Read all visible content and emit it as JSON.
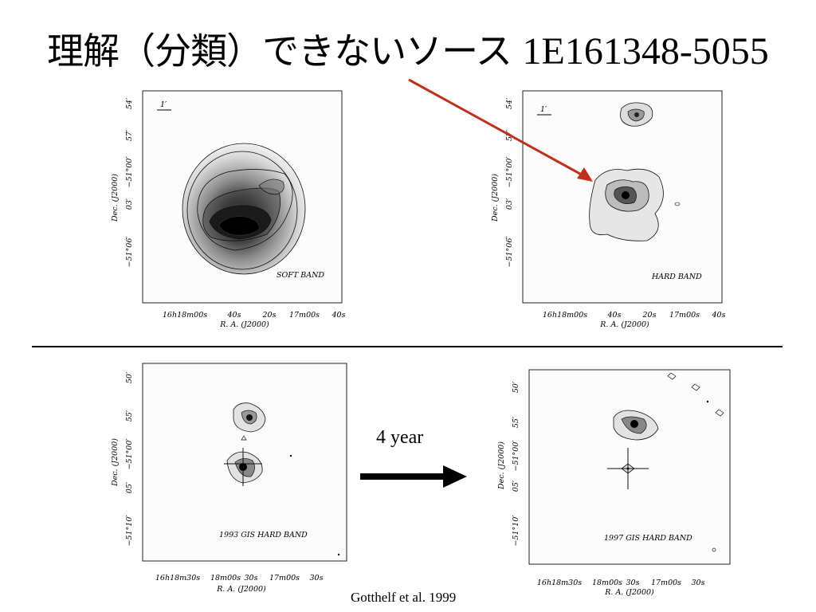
{
  "slide": {
    "title_jp": "理解（分類）できないソース",
    "title_source": "1E161348-5055",
    "arrow_label": "4 year",
    "citation": "Gotthelf et al. 1999"
  },
  "colors": {
    "red_arrow": "#c0301a",
    "frame": "#222222",
    "contour": "#111111"
  },
  "panels": {
    "top_left": {
      "band": "SOFT BAND",
      "scale_bar": "1′",
      "y_axis_title": "Dec. (J2000)",
      "x_axis_title": "R. A. (J2000)",
      "y_ticks": [
        "54′",
        "57′",
        "−51°00′",
        "03′",
        "−51°06′"
      ],
      "x_ticks": [
        "16h18m00s",
        "40s",
        "20s",
        "17m00s",
        "40s"
      ]
    },
    "top_right": {
      "band": "HARD BAND",
      "scale_bar": "1′",
      "y_axis_title": "Dec. (J2000)",
      "x_axis_title": "R. A. (J2000)",
      "y_ticks": [
        "54′",
        "57′",
        "−51°00′",
        "03′",
        "−51°06′"
      ],
      "x_ticks": [
        "16h18m00s",
        "40s",
        "20s",
        "17m00s",
        "40s"
      ]
    },
    "bottom_left": {
      "band": "1993 GIS HARD BAND",
      "y_axis_title": "Dec. (J2000)",
      "x_axis_title": "R. A. (J2000)",
      "y_ticks": [
        "50′",
        "55′",
        "−51°00′",
        "05′",
        "−51°10′"
      ],
      "x_ticks": [
        "16h18m30s",
        "18m00s",
        "30s",
        "17m00s",
        "30s"
      ]
    },
    "bottom_right": {
      "band": "1997 GIS HARD BAND",
      "y_axis_title": "Dec. (J2000)",
      "x_axis_title": "R. A. (J2000)",
      "y_ticks": [
        "50′",
        "55′",
        "−51°00′",
        "05′",
        "−51°10′"
      ],
      "x_ticks": [
        "16h18m30s",
        "18m00s",
        "30s",
        "17m00s",
        "30s"
      ]
    }
  }
}
